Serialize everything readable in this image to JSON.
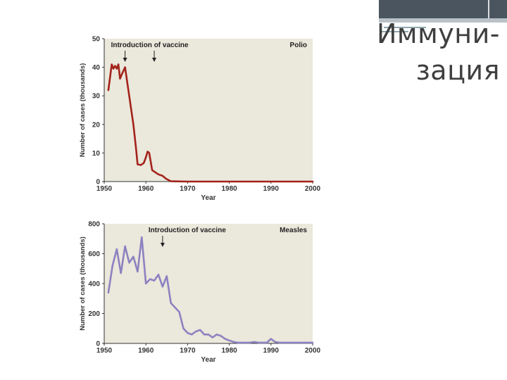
{
  "slide": {
    "title_line1": "Иммуни-",
    "title_line2": "зация",
    "colors": {
      "accent_bar": "#4a5560",
      "accent_bar_light": "#b9c1c7"
    }
  },
  "chart_data": [
    {
      "type": "line",
      "panel_label": "Polio",
      "annotation": "Introduction of vaccine",
      "annotation_years": [
        1955,
        1962
      ],
      "xlabel": "Year",
      "ylabel": "Number of cases (thousands)",
      "xlim": [
        1950,
        2000
      ],
      "ylim": [
        0,
        50
      ],
      "xticks": [
        1950,
        1960,
        1970,
        1980,
        1990,
        2000
      ],
      "yticks": [
        0,
        10,
        20,
        30,
        40,
        50
      ],
      "grid": false,
      "plot_bg": "#ebe8dc",
      "line_color": "#a3231b",
      "series": [
        {
          "x": [
            1951,
            1951.8,
            1952.2,
            1952.6,
            1953,
            1953.4,
            1953.8,
            1954.2,
            1955,
            1956,
            1957,
            1957.6,
            1958,
            1958.8,
            1959.5,
            1960,
            1960.4,
            1960.8,
            1961.5,
            1962,
            1963,
            1964,
            1964.8,
            1966,
            1970,
            1980,
            1990,
            2000
          ],
          "y": [
            32,
            41,
            39.5,
            40.5,
            39.5,
            41,
            36,
            37.5,
            40,
            30,
            20,
            12,
            6,
            5.8,
            6.5,
            8.5,
            10.5,
            10,
            4,
            3.5,
            2.5,
            2,
            1,
            0.1,
            0,
            0,
            0,
            0
          ]
        }
      ]
    },
    {
      "type": "line",
      "panel_label": "Measles",
      "annotation": "Introduction of vaccine",
      "annotation_years": [
        1964
      ],
      "xlabel": "Year",
      "ylabel": "Number of cases (thousands)",
      "xlim": [
        1950,
        2000
      ],
      "ylim": [
        0,
        800
      ],
      "xticks": [
        1950,
        1960,
        1970,
        1980,
        1990,
        2000
      ],
      "yticks": [
        0,
        200,
        400,
        600,
        800
      ],
      "grid": false,
      "plot_bg": "#ebe8dc",
      "line_color": "#8c82c0",
      "series": [
        {
          "x": [
            1951,
            1952,
            1953,
            1954,
            1955,
            1956,
            1957,
            1958,
            1959,
            1960,
            1961,
            1962,
            1963,
            1964,
            1965,
            1966,
            1967,
            1968,
            1969,
            1970,
            1971,
            1972,
            1973,
            1974,
            1975,
            1976,
            1977,
            1978,
            1979,
            1980,
            1981,
            1982,
            1983,
            1984,
            1985,
            1986,
            1987,
            1988,
            1989,
            1990,
            1991,
            1992,
            1993,
            1994,
            1995,
            1996,
            1997,
            1998,
            1999,
            2000
          ],
          "y": [
            340,
            520,
            630,
            470,
            650,
            540,
            580,
            480,
            710,
            400,
            430,
            420,
            460,
            380,
            450,
            270,
            240,
            210,
            100,
            70,
            60,
            80,
            90,
            60,
            60,
            40,
            60,
            50,
            30,
            20,
            10,
            5,
            5,
            5,
            5,
            10,
            5,
            5,
            5,
            30,
            10,
            5,
            5,
            5,
            5,
            5,
            5,
            5,
            5,
            5
          ]
        }
      ]
    }
  ]
}
